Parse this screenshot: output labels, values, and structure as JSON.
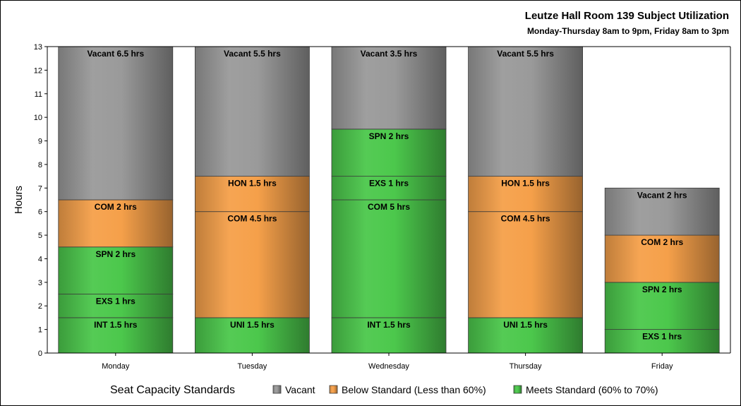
{
  "chart_data": {
    "type": "bar",
    "stacked": true,
    "title": "Leutze Hall Room 139 Subject Utilization",
    "subtitle": "Monday-Thursday 8am to 9pm, Friday 8am to 3pm",
    "ylabel": "Hours",
    "xlabel": "",
    "ylim": [
      0,
      13
    ],
    "yticks": [
      0,
      1,
      2,
      3,
      4,
      5,
      6,
      7,
      8,
      9,
      10,
      11,
      12,
      13
    ],
    "categories": [
      "Monday",
      "Tuesday",
      "Wednesday",
      "Thursday",
      "Friday"
    ],
    "colors": {
      "Vacant": "#9a9a9a",
      "Below Standard (Less than 60%)": "#f5a04a",
      "Meets Standard (60% to 70%)": "#4cc84c"
    },
    "bars": [
      {
        "category": "Monday",
        "segments": [
          {
            "label": "INT 1.5 hrs",
            "value": 1.5,
            "group": "Meets Standard (60% to 70%)"
          },
          {
            "label": "EXS 1 hrs",
            "value": 1,
            "group": "Meets Standard (60% to 70%)"
          },
          {
            "label": "SPN 2 hrs",
            "value": 2,
            "group": "Meets Standard (60% to 70%)"
          },
          {
            "label": "COM 2 hrs",
            "value": 2,
            "group": "Below Standard (Less than 60%)"
          },
          {
            "label": "Vacant 6.5 hrs",
            "value": 6.5,
            "group": "Vacant"
          }
        ]
      },
      {
        "category": "Tuesday",
        "segments": [
          {
            "label": "UNI 1.5 hrs",
            "value": 1.5,
            "group": "Meets Standard (60% to 70%)"
          },
          {
            "label": "COM 4.5 hrs",
            "value": 4.5,
            "group": "Below Standard (Less than 60%)"
          },
          {
            "label": "HON 1.5 hrs",
            "value": 1.5,
            "group": "Below Standard (Less than 60%)"
          },
          {
            "label": "Vacant 5.5 hrs",
            "value": 5.5,
            "group": "Vacant"
          }
        ]
      },
      {
        "category": "Wednesday",
        "segments": [
          {
            "label": "INT 1.5 hrs",
            "value": 1.5,
            "group": "Meets Standard (60% to 70%)"
          },
          {
            "label": "COM 5 hrs",
            "value": 5,
            "group": "Meets Standard (60% to 70%)"
          },
          {
            "label": "EXS 1 hrs",
            "value": 1,
            "group": "Meets Standard (60% to 70%)"
          },
          {
            "label": "SPN 2 hrs",
            "value": 2,
            "group": "Meets Standard (60% to 70%)"
          },
          {
            "label": "Vacant 3.5 hrs",
            "value": 3.5,
            "group": "Vacant"
          }
        ]
      },
      {
        "category": "Thursday",
        "segments": [
          {
            "label": "UNI 1.5 hrs",
            "value": 1.5,
            "group": "Meets Standard (60% to 70%)"
          },
          {
            "label": "COM 4.5 hrs",
            "value": 4.5,
            "group": "Below Standard (Less than 60%)"
          },
          {
            "label": "HON 1.5 hrs",
            "value": 1.5,
            "group": "Below Standard (Less than 60%)"
          },
          {
            "label": "Vacant 5.5 hrs",
            "value": 5.5,
            "group": "Vacant"
          }
        ]
      },
      {
        "category": "Friday",
        "segments": [
          {
            "label": "EXS 1 hrs",
            "value": 1,
            "group": "Meets Standard (60% to 70%)"
          },
          {
            "label": "SPN 2 hrs",
            "value": 2,
            "group": "Meets Standard (60% to 70%)"
          },
          {
            "label": "COM 2 hrs",
            "value": 2,
            "group": "Below Standard (Less than 60%)"
          },
          {
            "label": "Vacant 2 hrs",
            "value": 2,
            "group": "Vacant"
          }
        ]
      }
    ],
    "legend": {
      "title": "Seat Capacity Standards",
      "position": "bottom",
      "entries": [
        "Vacant",
        "Below Standard (Less than 60%)",
        "Meets Standard (60% to 70%)"
      ]
    },
    "grid": false
  }
}
